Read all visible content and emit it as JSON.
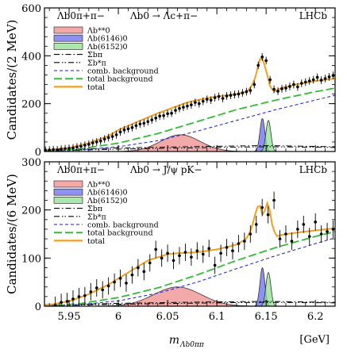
{
  "figure": {
    "x_label_main": "m",
    "x_label_sub": "Λb0ππ",
    "x_unit": "[GeV]"
  },
  "chart_data": [
    {
      "type": "line",
      "panel": "top",
      "title_left": "Λb0π+π−",
      "title_mid": "Λb0 → Λc+π−",
      "brand": "LHCb",
      "ylabel": "Candidates/(2 MeV)",
      "xlim": [
        5.925,
        6.22
      ],
      "ylim": [
        0,
        600
      ],
      "x_ticks": [
        5.95,
        6.0,
        6.05,
        6.1,
        6.15,
        6.2
      ],
      "x_tick_labels": [
        "5.95",
        "6",
        "6.05",
        "6.1",
        "6.15",
        "6.2"
      ],
      "y_ticks": [
        0,
        200,
        400,
        600
      ],
      "legend_position": "top-left",
      "legend": [
        {
          "label": "Λb**0",
          "style": "fill",
          "color": "#f08c8c"
        },
        {
          "label": "Λb(6146)0",
          "style": "fill",
          "color": "#6a6af0"
        },
        {
          "label": "Λb(6152)0",
          "style": "fill",
          "color": "#8fe08f"
        },
        {
          "label": "Σbπ",
          "style": "dashdot",
          "color": "#000000"
        },
        {
          "label": "Σb*π",
          "style": "dashdotdot",
          "color": "#000000"
        },
        {
          "label": "comb. background",
          "style": "dashed",
          "color": "#1a1acc"
        },
        {
          "label": "total background",
          "style": "longdash",
          "color": "#33bb33"
        },
        {
          "label": "total",
          "style": "solid",
          "color": "#f0a020"
        }
      ],
      "series": [
        {
          "name": "total",
          "x": [
            5.93,
            5.95,
            5.97,
            5.99,
            6.0,
            6.02,
            6.04,
            6.06,
            6.07,
            6.08,
            6.1,
            6.12,
            6.13,
            6.135,
            6.14,
            6.143,
            6.146,
            6.15,
            6.154,
            6.158,
            6.165,
            6.18,
            6.2,
            6.22
          ],
          "y": [
            8,
            15,
            35,
            65,
            90,
            125,
            160,
            190,
            205,
            215,
            230,
            240,
            250,
            270,
            320,
            385,
            390,
            340,
            270,
            250,
            265,
            280,
            295,
            305
          ]
        },
        {
          "name": "total background",
          "x": [
            5.93,
            5.96,
            6.0,
            6.04,
            6.08,
            6.12,
            6.16,
            6.2,
            6.22
          ],
          "y": [
            3,
            10,
            35,
            75,
            125,
            175,
            215,
            250,
            265
          ]
        },
        {
          "name": "comb. background",
          "x": [
            5.93,
            5.96,
            6.0,
            6.04,
            6.08,
            6.12,
            6.16,
            6.2,
            6.22
          ],
          "y": [
            2,
            6,
            20,
            45,
            85,
            130,
            175,
            215,
            235
          ]
        },
        {
          "name": "Λb**0",
          "peak_x": 6.063,
          "sigma": 0.02,
          "peak_y": 70
        },
        {
          "name": "Λb(6146)0",
          "peak_x": 6.1462,
          "sigma": 0.0025,
          "peak_y": 138
        },
        {
          "name": "Λb(6152)0",
          "peak_x": 6.1523,
          "sigma": 0.0025,
          "peak_y": 130
        },
        {
          "name": "Σbπ",
          "x": [
            5.93,
            6.0,
            6.1,
            6.15,
            6.22
          ],
          "y": [
            5,
            15,
            22,
            25,
            20
          ]
        },
        {
          "name": "Σb*π",
          "x": [
            5.93,
            6.0,
            6.1,
            6.15,
            6.22
          ],
          "y": [
            3,
            10,
            17,
            20,
            17
          ]
        }
      ],
      "points": {
        "x": [
          5.926,
          5.93,
          5.934,
          5.938,
          5.942,
          5.946,
          5.95,
          5.954,
          5.958,
          5.962,
          5.966,
          5.97,
          5.974,
          5.978,
          5.982,
          5.986,
          5.99,
          5.994,
          5.998,
          6.002,
          6.006,
          6.01,
          6.014,
          6.018,
          6.022,
          6.026,
          6.03,
          6.034,
          6.038,
          6.042,
          6.046,
          6.05,
          6.054,
          6.058,
          6.062,
          6.066,
          6.07,
          6.074,
          6.078,
          6.082,
          6.086,
          6.09,
          6.094,
          6.098,
          6.102,
          6.106,
          6.11,
          6.114,
          6.118,
          6.122,
          6.126,
          6.13,
          6.134,
          6.138,
          6.142,
          6.146,
          6.15,
          6.154,
          6.158,
          6.162,
          6.166,
          6.17,
          6.174,
          6.178,
          6.182,
          6.186,
          6.19,
          6.194,
          6.198,
          6.202,
          6.206,
          6.21,
          6.214,
          6.218
        ],
        "y": [
          5,
          6,
          8,
          7,
          10,
          12,
          13,
          15,
          19,
          22,
          26,
          30,
          36,
          40,
          44,
          52,
          58,
          63,
          70,
          82,
          90,
          95,
          100,
          108,
          115,
          118,
          125,
          132,
          140,
          148,
          150,
          158,
          160,
          172,
          180,
          185,
          190,
          195,
          205,
          200,
          210,
          218,
          215,
          225,
          230,
          222,
          232,
          235,
          238,
          240,
          245,
          250,
          255,
          280,
          360,
          395,
          380,
          300,
          260,
          252,
          262,
          265,
          272,
          280,
          270,
          285,
          290,
          295,
          300,
          310,
          298,
          305,
          312,
          318
        ],
        "err": 16
      }
    },
    {
      "type": "line",
      "panel": "bottom",
      "title_left": "Λb0π+π−",
      "title_mid": "Λb0 → J/ψ pK−",
      "brand": "LHCb",
      "ylabel": "Candidates/(6 MeV)",
      "xlim": [
        5.925,
        6.22
      ],
      "ylim": [
        0,
        300
      ],
      "x_ticks": [
        5.95,
        6.0,
        6.05,
        6.1,
        6.15,
        6.2
      ],
      "x_tick_labels": [
        "5.95",
        "6",
        "6.05",
        "6.1",
        "6.15",
        "6.2"
      ],
      "y_ticks": [
        0,
        100,
        200,
        300
      ],
      "legend_position": "top-left",
      "legend": [
        {
          "label": "Λb**0",
          "style": "fill",
          "color": "#f08c8c"
        },
        {
          "label": "Λb(6146)0",
          "style": "fill",
          "color": "#6a6af0"
        },
        {
          "label": "Λb(6152)0",
          "style": "fill",
          "color": "#8fe08f"
        },
        {
          "label": "Σbπ",
          "style": "dashdot",
          "color": "#000000"
        },
        {
          "label": "Σb*π",
          "style": "dashdotdot",
          "color": "#000000"
        },
        {
          "label": "comb. background",
          "style": "dashed",
          "color": "#1a1acc"
        },
        {
          "label": "total background",
          "style": "longdash",
          "color": "#33bb33"
        },
        {
          "label": "total",
          "style": "solid",
          "color": "#f0a020"
        }
      ],
      "series": [
        {
          "name": "total",
          "x": [
            5.93,
            5.95,
            5.97,
            5.99,
            6.01,
            6.03,
            6.05,
            6.06,
            6.08,
            6.1,
            6.12,
            6.13,
            6.135,
            6.14,
            6.143,
            6.146,
            6.149,
            6.152,
            6.156,
            6.16,
            6.17,
            6.19,
            6.22
          ],
          "y": [
            3,
            10,
            25,
            45,
            70,
            95,
            108,
            110,
            112,
            118,
            128,
            140,
            160,
            200,
            215,
            190,
            200,
            220,
            170,
            145,
            150,
            155,
            162
          ]
        },
        {
          "name": "total background",
          "x": [
            5.93,
            5.96,
            6.0,
            6.04,
            6.08,
            6.12,
            6.16,
            6.2,
            6.22
          ],
          "y": [
            1,
            5,
            18,
            38,
            65,
            95,
            122,
            145,
            155
          ]
        },
        {
          "name": "comb. background",
          "x": [
            5.93,
            5.96,
            6.0,
            6.04,
            6.08,
            6.12,
            6.16,
            6.2,
            6.22
          ],
          "y": [
            0.5,
            3,
            11,
            27,
            50,
            78,
            105,
            130,
            142
          ]
        },
        {
          "name": "Λb**0",
          "peak_x": 6.06,
          "sigma": 0.024,
          "peak_y": 40
        },
        {
          "name": "Λb(6146)0",
          "peak_x": 6.1462,
          "sigma": 0.0025,
          "peak_y": 80
        },
        {
          "name": "Λb(6152)0",
          "peak_x": 6.1523,
          "sigma": 0.0025,
          "peak_y": 70
        },
        {
          "name": "Σbπ",
          "x": [
            5.93,
            6.0,
            6.1,
            6.15,
            6.22
          ],
          "y": [
            2,
            6,
            9,
            10,
            8
          ]
        },
        {
          "name": "Σb*π",
          "x": [
            5.93,
            6.0,
            6.1,
            6.15,
            6.22
          ],
          "y": [
            1,
            4,
            7,
            8,
            7
          ]
        }
      ],
      "points": {
        "x": [
          5.936,
          5.942,
          5.948,
          5.954,
          5.96,
          5.966,
          5.972,
          5.978,
          5.984,
          5.99,
          5.996,
          6.002,
          6.008,
          6.014,
          6.02,
          6.026,
          6.032,
          6.038,
          6.044,
          6.05,
          6.056,
          6.062,
          6.068,
          6.074,
          6.08,
          6.086,
          6.092,
          6.098,
          6.104,
          6.11,
          6.116,
          6.122,
          6.128,
          6.134,
          6.14,
          6.146,
          6.152,
          6.158,
          6.164,
          6.17,
          6.176,
          6.182,
          6.188,
          6.194,
          6.2,
          6.206,
          6.212,
          6.218
        ],
        "y": [
          2,
          8,
          10,
          15,
          20,
          22,
          30,
          38,
          34,
          42,
          50,
          58,
          48,
          65,
          80,
          72,
          90,
          118,
          100,
          110,
          95,
          105,
          112,
          102,
          115,
          108,
          120,
          85,
          110,
          122,
          115,
          130,
          135,
          150,
          170,
          205,
          190,
          220,
          140,
          150,
          135,
          160,
          170,
          145,
          175,
          150,
          155,
          160
        ],
        "err": 18
      }
    }
  ]
}
